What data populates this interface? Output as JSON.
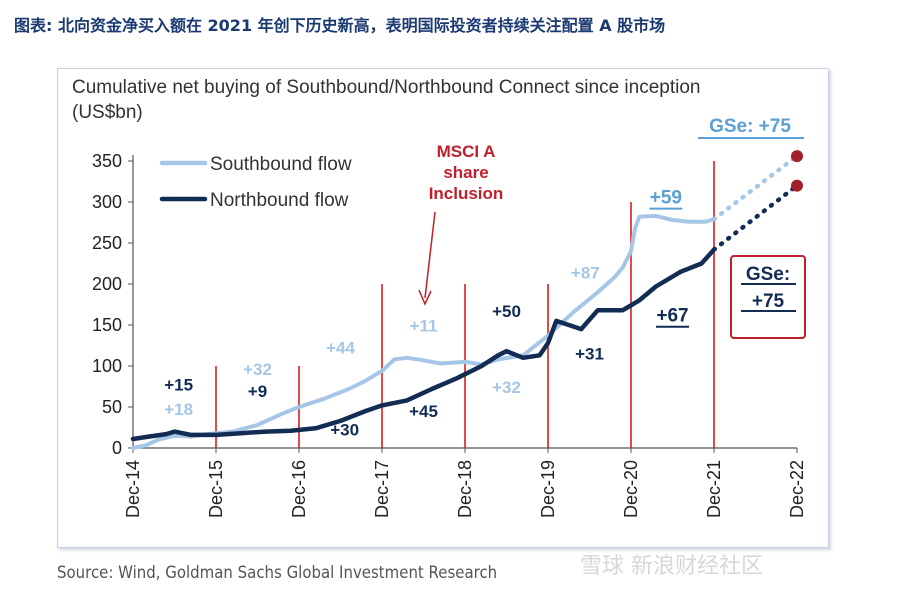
{
  "heading": "图表: 北向资金净买入额在 2021 年创下历史新高，表明国际投资者持续关注配置 A 股市场",
  "source": "Source: Wind, Goldman Sachs Global Investment Research",
  "watermark": "雪球 新浪财经社区",
  "colors": {
    "southbound": "#a5c6e6",
    "northbound": "#122c54",
    "vline": "#e04a4a",
    "red": "#c0202a",
    "gse_blue": "#5ba0d4"
  },
  "chart_data": {
    "type": "line",
    "title": "Cumulative net buying of Southbound/Northbound Connect since inception",
    "ylabel": "(US$bn)",
    "ylim": [
      0,
      350
    ],
    "yticks": [
      0,
      50,
      100,
      150,
      200,
      250,
      300,
      350
    ],
    "xticks": [
      "Dec-14",
      "Dec-15",
      "Dec-16",
      "Dec-17",
      "Dec-18",
      "Dec-19",
      "Dec-20",
      "Dec-21",
      "Dec-22"
    ],
    "legend": [
      "Southbound flow",
      "Northbound flow"
    ],
    "legend_position": "top-left",
    "series": [
      {
        "name": "Southbound flow",
        "points": [
          [
            0,
            0
          ],
          [
            0.15,
            3
          ],
          [
            0.3,
            10
          ],
          [
            0.5,
            15
          ],
          [
            0.7,
            14
          ],
          [
            0.9,
            17
          ],
          [
            1.0,
            18
          ],
          [
            1.2,
            20
          ],
          [
            1.5,
            28
          ],
          [
            1.8,
            42
          ],
          [
            2.0,
            50
          ],
          [
            2.3,
            60
          ],
          [
            2.6,
            72
          ],
          [
            2.8,
            82
          ],
          [
            3.0,
            94
          ],
          [
            3.15,
            108
          ],
          [
            3.3,
            110
          ],
          [
            3.5,
            107
          ],
          [
            3.7,
            103
          ],
          [
            4.0,
            105
          ],
          [
            4.2,
            102
          ],
          [
            4.4,
            108
          ],
          [
            4.7,
            113
          ],
          [
            5.0,
            137
          ],
          [
            5.3,
            165
          ],
          [
            5.6,
            190
          ],
          [
            5.8,
            208
          ],
          [
            5.9,
            220
          ],
          [
            6.0,
            240
          ],
          [
            6.05,
            268
          ],
          [
            6.1,
            282
          ],
          [
            6.3,
            283
          ],
          [
            6.5,
            278
          ],
          [
            6.7,
            276
          ],
          [
            6.9,
            276
          ],
          [
            7.0,
            279
          ]
        ]
      },
      {
        "name": "Northbound flow",
        "points": [
          [
            0,
            11
          ],
          [
            0.2,
            14
          ],
          [
            0.4,
            17
          ],
          [
            0.5,
            20
          ],
          [
            0.7,
            16
          ],
          [
            1.0,
            16
          ],
          [
            1.3,
            18
          ],
          [
            1.6,
            20
          ],
          [
            1.9,
            21
          ],
          [
            2.2,
            24
          ],
          [
            2.5,
            33
          ],
          [
            2.8,
            45
          ],
          [
            3.0,
            52
          ],
          [
            3.3,
            58
          ],
          [
            3.6,
            72
          ],
          [
            3.9,
            85
          ],
          [
            4.2,
            100
          ],
          [
            4.4,
            113
          ],
          [
            4.5,
            118
          ],
          [
            4.7,
            110
          ],
          [
            4.9,
            113
          ],
          [
            5.0,
            128
          ],
          [
            5.1,
            155
          ],
          [
            5.25,
            150
          ],
          [
            5.4,
            145
          ],
          [
            5.6,
            168
          ],
          [
            5.9,
            168
          ],
          [
            6.1,
            180
          ],
          [
            6.3,
            197
          ],
          [
            6.6,
            215
          ],
          [
            6.85,
            225
          ],
          [
            7.0,
            242
          ]
        ]
      }
    ],
    "projections": [
      {
        "name": "Southbound flow",
        "from": [
          7.0,
          279
        ],
        "to": [
          8.0,
          356
        ]
      },
      {
        "name": "Northbound flow",
        "from": [
          7.0,
          242
        ],
        "to": [
          8.0,
          320
        ]
      }
    ],
    "vlines": [
      {
        "x": 1,
        "ymax": 100
      },
      {
        "x": 2,
        "ymax": 100
      },
      {
        "x": 3,
        "ymax": 200
      },
      {
        "x": 4,
        "ymax": 200
      },
      {
        "x": 5,
        "ymax": 200
      },
      {
        "x": 6,
        "ymax": 300
      },
      {
        "x": 7,
        "ymax": 350
      }
    ],
    "annotations": [
      {
        "text": "+15",
        "x": 0.55,
        "y": 70,
        "color": "#122c54",
        "bold": true
      },
      {
        "text": "+18",
        "x": 0.55,
        "y": 40,
        "color": "#a5c6e6",
        "bold": true
      },
      {
        "text": "+32",
        "x": 1.5,
        "y": 89,
        "color": "#a5c6e6",
        "bold": true
      },
      {
        "text": "+9",
        "x": 1.5,
        "y": 62,
        "color": "#122c54",
        "bold": true
      },
      {
        "text": "+44",
        "x": 2.5,
        "y": 115,
        "color": "#a5c6e6",
        "bold": true
      },
      {
        "text": "+30",
        "x": 2.55,
        "y": 15,
        "color": "#122c54",
        "bold": true
      },
      {
        "text": "+11",
        "x": 3.5,
        "y": 142,
        "color": "#a5c6e6",
        "bold": true
      },
      {
        "text": "+45",
        "x": 3.5,
        "y": 38,
        "color": "#122c54",
        "bold": true
      },
      {
        "text": "+50",
        "x": 4.5,
        "y": 160,
        "color": "#122c54",
        "bold": true
      },
      {
        "text": "+32",
        "x": 4.5,
        "y": 67,
        "color": "#a5c6e6",
        "bold": true
      },
      {
        "text": "+87",
        "x": 5.45,
        "y": 207,
        "color": "#a5c6e6",
        "bold": true
      },
      {
        "text": "+31",
        "x": 5.5,
        "y": 108,
        "color": "#122c54",
        "bold": true
      },
      {
        "text": "+59",
        "x": 6.42,
        "y": 298,
        "color": "#5ba0d4",
        "bold": true,
        "underline": true
      },
      {
        "text": "+67",
        "x": 6.5,
        "y": 154,
        "color": "#122c54",
        "bold": true,
        "underline": true
      }
    ],
    "msci_label": [
      "MSCI A",
      "share",
      "Inclusion"
    ],
    "gse_top": "GSe: +75",
    "gse_box": [
      "GSe:",
      "+75"
    ]
  }
}
